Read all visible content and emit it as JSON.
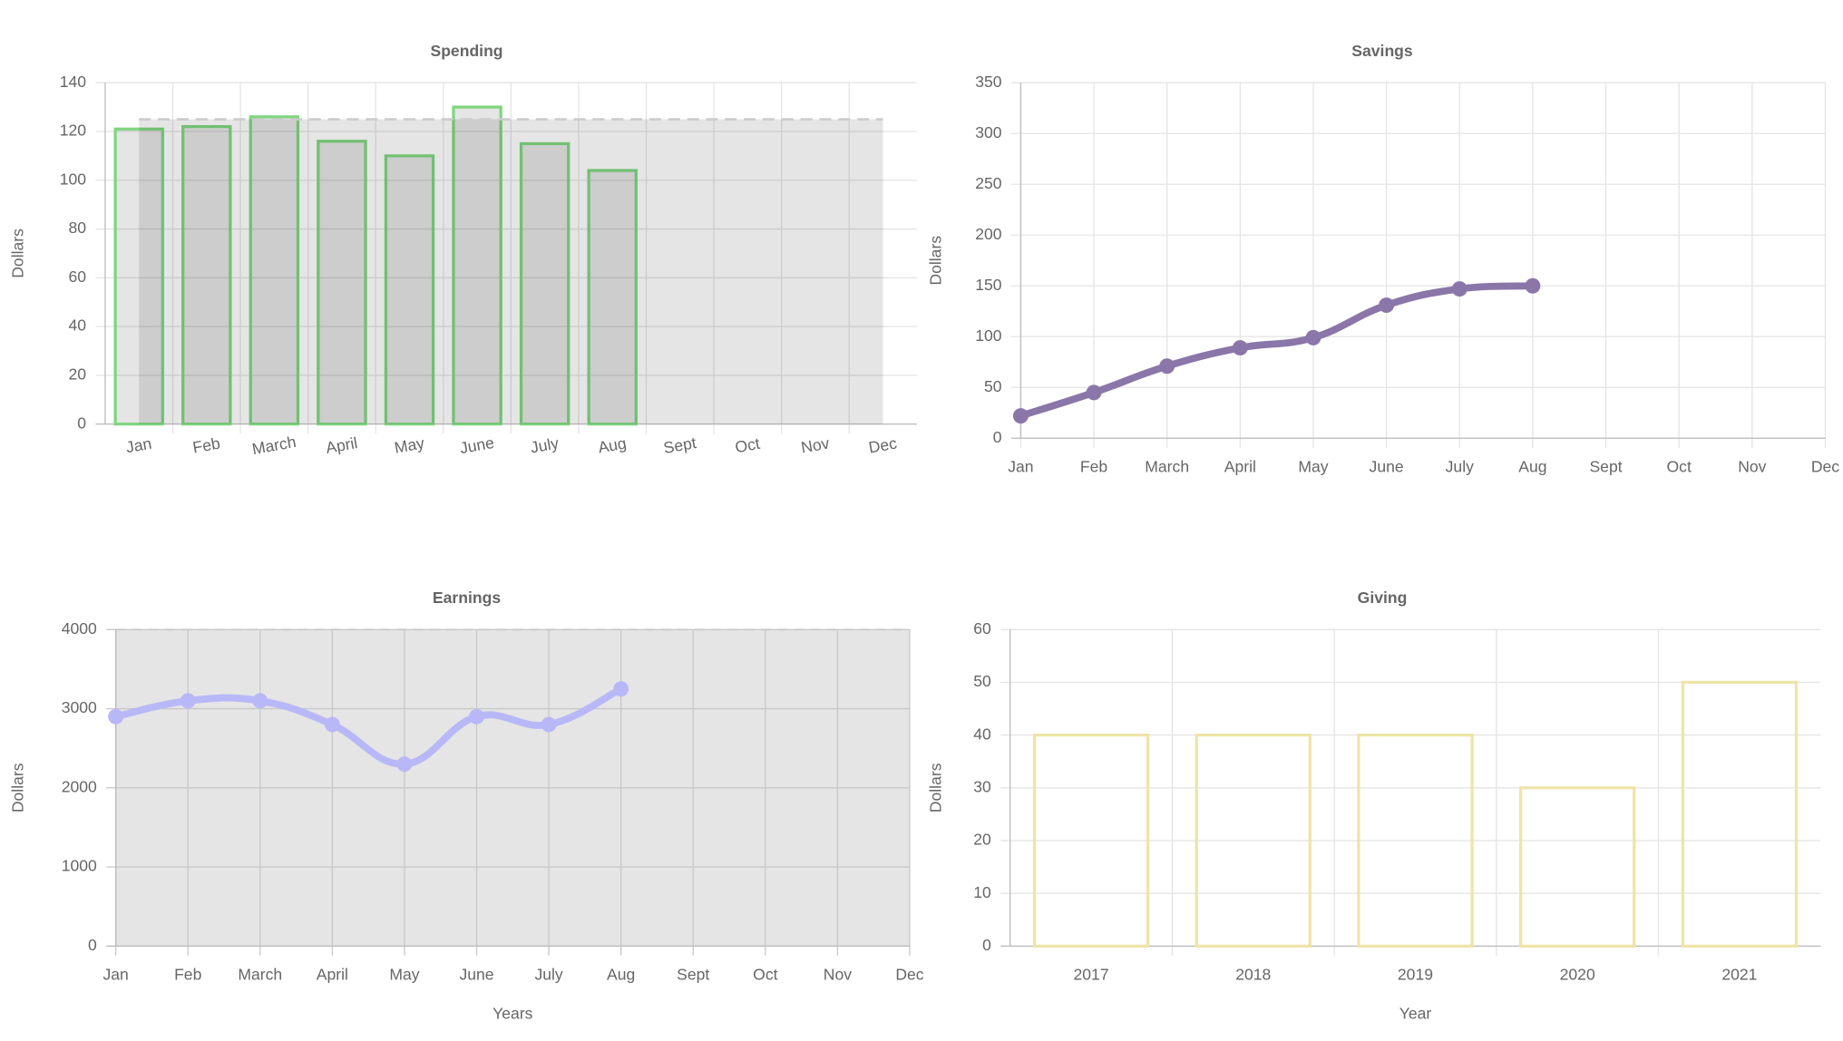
{
  "chart_data": [
    {
      "type": "bar",
      "title": "Spending",
      "ylabel": "Dollars",
      "categories": [
        "Jan",
        "Feb",
        "March",
        "April",
        "May",
        "June",
        "July",
        "Aug",
        "Sept",
        "Oct",
        "Nov",
        "Dec"
      ],
      "series": [
        {
          "type": "bar",
          "color": "#7fd67f",
          "values": [
            121,
            122,
            126,
            116,
            110,
            130,
            115,
            104,
            null,
            null,
            null,
            null
          ]
        },
        {
          "type": "area",
          "color": "#cccccc",
          "values": [
            125,
            125,
            125,
            125,
            125,
            125,
            125,
            125,
            125,
            125,
            125,
            125
          ]
        }
      ],
      "ylim": [
        0,
        140
      ],
      "yticks": [
        0,
        20,
        40,
        60,
        80,
        100,
        120,
        140
      ],
      "grid": true
    },
    {
      "type": "line",
      "title": "Savings",
      "ylabel": "Dollars",
      "categories": [
        "Jan",
        "Feb",
        "March",
        "April",
        "May",
        "June",
        "July",
        "Aug",
        "Sept",
        "Oct",
        "Nov",
        "Dec"
      ],
      "series": [
        {
          "type": "line",
          "color": "#8a76a8",
          "values": [
            22,
            45,
            71,
            89,
            99,
            131,
            147,
            150,
            null,
            null,
            null,
            null
          ]
        }
      ],
      "ylim": [
        0,
        350
      ],
      "yticks": [
        0,
        50,
        100,
        150,
        200,
        250,
        300,
        350
      ],
      "grid": true
    },
    {
      "type": "line",
      "title": "Earnings",
      "ylabel": "Dollars",
      "xlabel": "Years",
      "categories": [
        "Jan",
        "Feb",
        "March",
        "April",
        "May",
        "June",
        "July",
        "Aug",
        "Sept",
        "Oct",
        "Nov",
        "Dec"
      ],
      "series": [
        {
          "type": "line",
          "color": "#b8b8f8",
          "values": [
            2900,
            3100,
            3100,
            2800,
            2300,
            2900,
            2800,
            3250,
            null,
            null,
            null,
            null
          ]
        }
      ],
      "ylim": [
        0,
        4000
      ],
      "yticks": [
        0,
        1000,
        2000,
        3000,
        4000
      ],
      "grid": true,
      "plot_background": "#e5e5e5"
    },
    {
      "type": "bar",
      "title": "Giving",
      "ylabel": "Dollars",
      "xlabel": "Year",
      "categories": [
        "2017",
        "2018",
        "2019",
        "2020",
        "2021"
      ],
      "series": [
        {
          "type": "bar",
          "color": "#efe4a8",
          "values": [
            40,
            40,
            40,
            30,
            50
          ]
        }
      ],
      "ylim": [
        0,
        60
      ],
      "yticks": [
        0,
        10,
        20,
        30,
        40,
        50,
        60
      ],
      "grid": true
    }
  ]
}
